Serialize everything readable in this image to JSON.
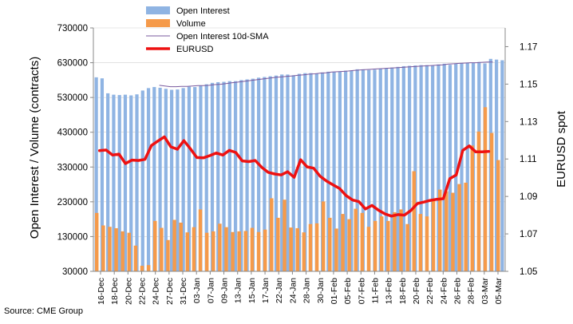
{
  "source_label": "Source: CME Group",
  "chart_data": {
    "type": "bar",
    "left_axis_label": "Open Interest / Volume (contracts)",
    "right_axis_label": "EURUSD spot",
    "left_ylim": [
      30000,
      730000
    ],
    "left_ticks": [
      "730000",
      "630000",
      "530000",
      "430000",
      "330000",
      "230000",
      "130000",
      "30000"
    ],
    "right_ylim": [
      1.05,
      1.18
    ],
    "right_ticks": [
      "1.17",
      "1.15",
      "1.13",
      "1.11",
      "1.09",
      "1.07",
      "1.05"
    ],
    "legend": [
      "Open Interest",
      "Volume",
      "Open Interest 10d-SMA",
      "EURUSD"
    ],
    "colors": {
      "open_interest": "#8fb4e3",
      "volume": "#f59a4a",
      "sma": "#7a5a9e",
      "eurusd": "#ee1111",
      "axis": "#888888"
    },
    "x_tick_labels": [
      "16-Dec",
      "18-Dec",
      "20-Dec",
      "22-Dec",
      "24-Dec",
      "27-Dec",
      "31-Dec",
      "03-Jan",
      "07-Jan",
      "09-Jan",
      "13-Jan",
      "15-Jan",
      "17-Jan",
      "22-Jan",
      "24-Jan",
      "28-Jan",
      "30-Jan",
      "01-Feb",
      "05-Feb",
      "07-Feb",
      "11-Feb",
      "13-Feb",
      "18-Feb",
      "20-Feb",
      "22-Feb",
      "24-Feb",
      "26-Feb",
      "28-Feb",
      "03-Mar",
      "05-Mar"
    ],
    "series": [
      {
        "name": "Open Interest",
        "values": [
          588000,
          585000,
          542000,
          538000,
          537000,
          538000,
          536000,
          539000,
          550000,
          557000,
          560000,
          558000,
          555000,
          552000,
          553000,
          557000,
          561000,
          560000,
          564000,
          568000,
          572000,
          574000,
          575000,
          577000,
          577000,
          580000,
          582000,
          584000,
          587000,
          589000,
          591000,
          593000,
          596000,
          596000,
          594000,
          598000,
          600000,
          600000,
          599000,
          602000,
          604000,
          604000,
          605000,
          607000,
          607000,
          611000,
          611000,
          609000,
          610000,
          613000,
          614000,
          616000,
          618000,
          620000,
          621000,
          622000,
          623000,
          623000,
          622000,
          625000,
          627000,
          624000,
          628000,
          628000,
          630000,
          630000,
          632000,
          628000,
          641000,
          639000,
          637000
        ]
      },
      {
        "name": "Volume",
        "values": [
          198000,
          162000,
          158000,
          154000,
          145000,
          141000,
          104000,
          46000,
          48000,
          175000,
          155000,
          120000,
          178000,
          170000,
          142000,
          157000,
          208000,
          141000,
          145000,
          167000,
          157000,
          143000,
          145000,
          146000,
          155000,
          143000,
          150000,
          240000,
          184000,
          236000,
          156000,
          154000,
          142000,
          166000,
          168000,
          231000,
          184000,
          153000,
          195000,
          180000,
          210000,
          198000,
          158000,
          175000,
          188000,
          175000,
          200000,
          208000,
          166000,
          318000,
          195000,
          188000,
          238000,
          265000,
          260000,
          256000,
          281000,
          285000,
          392000,
          432000,
          502000,
          428000,
          350000
        ]
      },
      {
        "name": "Open Interest 10d-SMA",
        "values": [
          565000,
          563000,
          561000,
          561000,
          562000,
          562000,
          563000,
          564000,
          564000,
          565000,
          567000,
          568000,
          570000,
          572000,
          574000,
          576000,
          578000,
          580000,
          582000,
          584000,
          586000,
          588000,
          589000,
          591000,
          592000,
          594000,
          595000,
          597000,
          598000,
          600000,
          601000,
          603000,
          604000,
          605000,
          606000,
          608000,
          609000,
          610000,
          611000,
          612000,
          613000,
          614000,
          615000,
          616000,
          617000,
          618000,
          619000,
          620000,
          621000,
          622000,
          623000,
          624000,
          626000,
          627000,
          628000,
          629000,
          630000,
          630000,
          631000,
          632000,
          632000
        ]
      },
      {
        "name": "EURUSD",
        "values": [
          1.1145,
          1.1148,
          1.1121,
          1.1126,
          1.1076,
          1.1094,
          1.1092,
          1.1098,
          1.1172,
          1.1196,
          1.1218,
          1.1165,
          1.1152,
          1.1198,
          1.1155,
          1.1108,
          1.1106,
          1.1118,
          1.1132,
          1.1121,
          1.1146,
          1.1135,
          1.109,
          1.1086,
          1.1092,
          1.1056,
          1.1029,
          1.102,
          1.1015,
          1.1032,
          1.1002,
          1.1096,
          1.1058,
          1.1051,
          1.1008,
          1.0982,
          1.0962,
          1.0943,
          1.0905,
          1.0881,
          1.0872,
          1.0833,
          1.0852,
          1.0827,
          1.0807,
          1.0795,
          1.0803,
          1.08,
          1.0825,
          1.0862,
          1.087,
          1.0879,
          1.0885,
          1.0888,
          1.0995,
          1.1015,
          1.1146,
          1.117,
          1.1138,
          1.1138,
          1.114
        ]
      }
    ]
  }
}
